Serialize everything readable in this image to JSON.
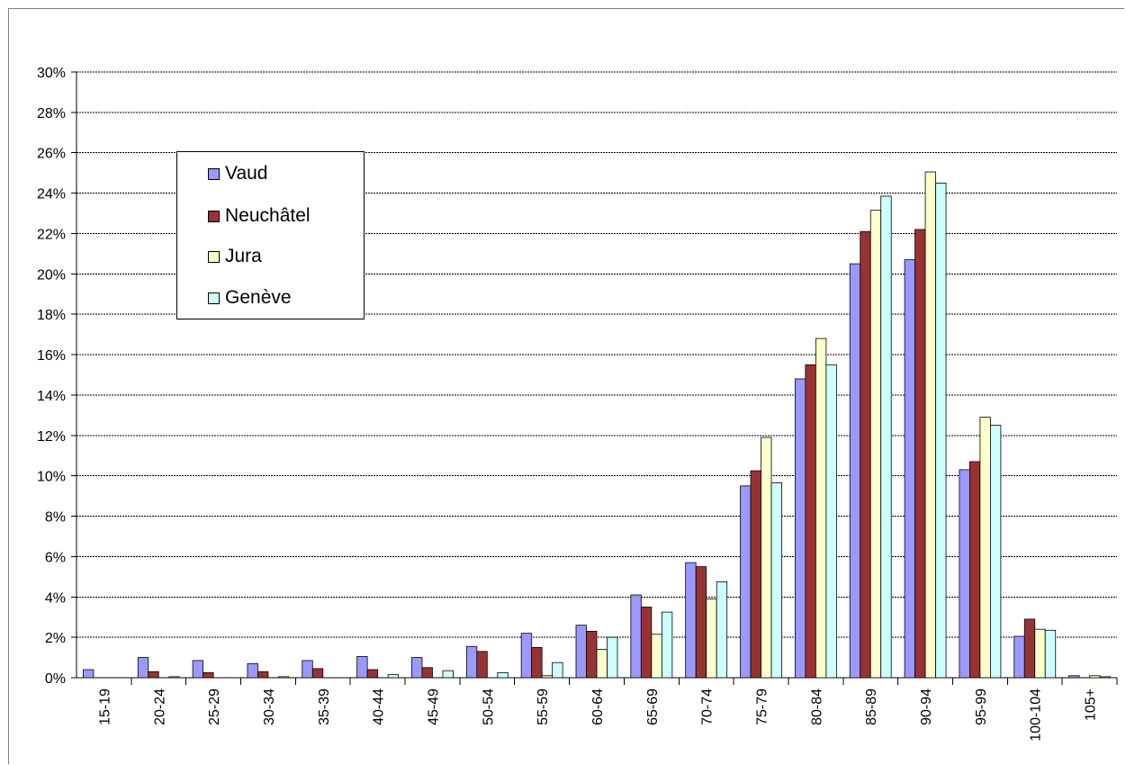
{
  "chart_data": {
    "type": "bar",
    "categories": [
      "15-19",
      "20-24",
      "25-29",
      "30-34",
      "35-39",
      "40-44",
      "45-49",
      "50-54",
      "55-59",
      "60-64",
      "65-69",
      "70-74",
      "75-79",
      "80-84",
      "85-89",
      "90-94",
      "95-99",
      "100-104",
      "105+"
    ],
    "series": [
      {
        "name": "Vaud",
        "color": "#9999ff",
        "values": [
          0.4,
          1.0,
          0.85,
          0.7,
          0.85,
          1.05,
          1.0,
          1.55,
          2.2,
          2.6,
          4.1,
          5.7,
          9.5,
          14.8,
          20.5,
          20.7,
          10.3,
          2.05,
          0.1
        ]
      },
      {
        "name": "Neuchâtel",
        "color": "#993333",
        "values": [
          0.0,
          0.3,
          0.25,
          0.3,
          0.45,
          0.4,
          0.5,
          1.3,
          1.5,
          2.3,
          3.5,
          5.5,
          10.25,
          15.5,
          22.1,
          22.2,
          10.7,
          2.9,
          0.0
        ]
      },
      {
        "name": "Jura",
        "color": "#ffffcc",
        "values": [
          0.0,
          0.0,
          0.0,
          0.0,
          0.0,
          0.0,
          0.0,
          0.0,
          0.1,
          1.4,
          2.15,
          3.9,
          11.9,
          16.8,
          23.15,
          25.05,
          12.9,
          2.4,
          0.1
        ]
      },
      {
        "name": "Genève",
        "color": "#ccffff",
        "values": [
          0.0,
          0.05,
          0.0,
          0.05,
          0.0,
          0.15,
          0.35,
          0.25,
          0.75,
          2.0,
          3.25,
          4.75,
          9.65,
          15.5,
          23.85,
          24.5,
          12.5,
          2.35,
          0.05
        ]
      }
    ],
    "ylim": [
      0,
      30
    ],
    "yticks": [
      "0%",
      "2%",
      "4%",
      "6%",
      "8%",
      "10%",
      "12%",
      "14%",
      "16%",
      "18%",
      "20%",
      "22%",
      "24%",
      "26%",
      "28%",
      "30%"
    ],
    "grid": true,
    "legend_position": "top-left"
  }
}
